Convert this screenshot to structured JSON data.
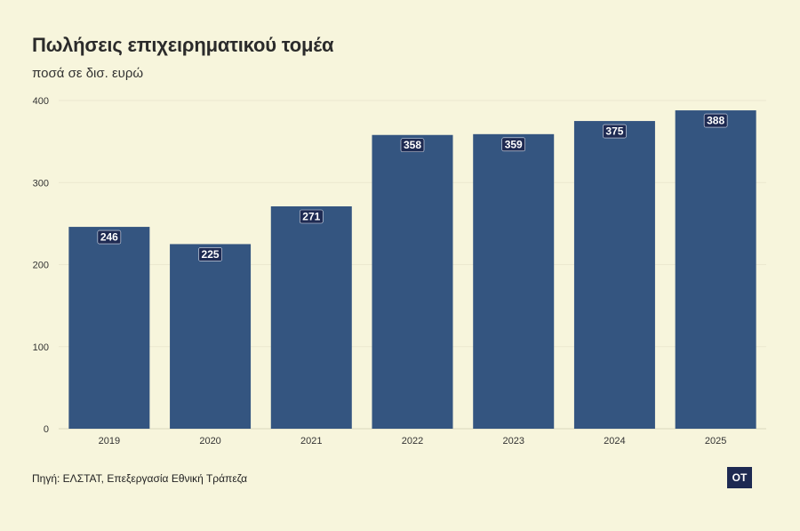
{
  "chart_data": {
    "type": "bar",
    "title": "Πωλήσεις επιχειρηματικού τομέα",
    "subtitle": "ποσά σε δισ. ευρώ",
    "categories": [
      "2019",
      "2020",
      "2021",
      "2022",
      "2023",
      "2024",
      "2025"
    ],
    "values": [
      246,
      225,
      271,
      358,
      359,
      375,
      388
    ],
    "ylim": [
      0,
      400
    ],
    "yticks": [
      0,
      100,
      200,
      300,
      400
    ],
    "grid": true,
    "bar_color": "#345580",
    "label_bg_color": "#1e2a52",
    "source": "Πηγή: ΕΛΣΤΑΤ, Επεξεργασία Εθνική Τράπεζα"
  },
  "logo_text": "OT"
}
